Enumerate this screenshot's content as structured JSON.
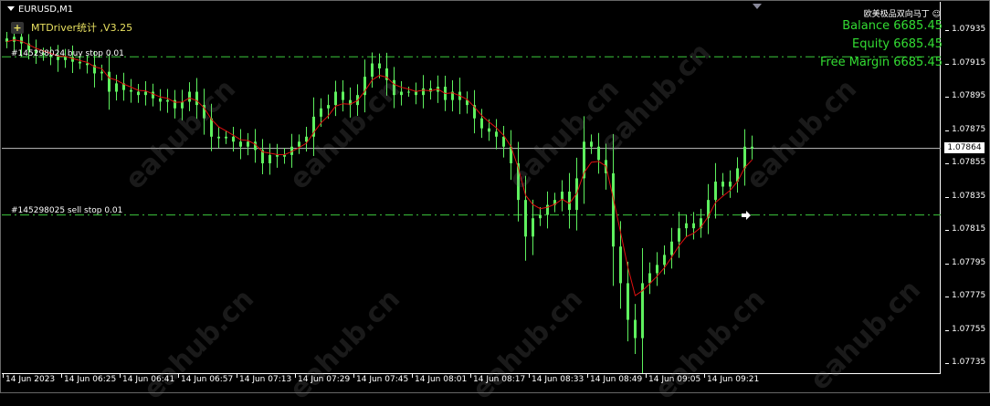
{
  "window": {
    "symbol": "EURUSD,M1"
  },
  "ea": {
    "plus_label": "+",
    "name": "MTDriver统计 ,V3.25"
  },
  "account": {
    "mode": "欧美极品双向马丁",
    "mode_icon": "smiley-icon",
    "balance": "Balance 6685.45",
    "equity": "Equity 6685.45",
    "free_margin": "Free Margin 6685.45"
  },
  "orders": [
    {
      "label": "#145298024 buy stop 0.01",
      "price": 1.07919
    },
    {
      "label": "#145298025 sell stop 0.01",
      "price": 1.07824
    }
  ],
  "watermark": "eahub.cn",
  "colors": {
    "candle": "#5ef05e",
    "ma": "#e01010",
    "order_line": "#3cc83c",
    "background": "#000000",
    "price_line": "#c0c0c0"
  },
  "chart_data": {
    "type": "candlestick",
    "timeframe": "M1",
    "current_price": "1.07864",
    "y_ticks": [
      "1.07935",
      "1.07915",
      "1.07895",
      "1.07875",
      "1.07855",
      "1.07835",
      "1.07815",
      "1.07795",
      "1.07775",
      "1.07755",
      "1.07735"
    ],
    "x_ticks": [
      "14 Jun 2023",
      "14 Jun 06:25",
      "14 Jun 06:41",
      "14 Jun 06:57",
      "14 Jun 07:13",
      "14 Jun 07:29",
      "14 Jun 07:45",
      "14 Jun 08:01",
      "14 Jun 08:17",
      "14 Jun 08:33",
      "14 Jun 08:49",
      "14 Jun 09:05",
      "14 Jun 09:21"
    ],
    "ylim": [
      1.07727,
      1.07945
    ],
    "closes": [
      1.07928,
      1.07931,
      1.07927,
      1.07923,
      1.07921,
      1.0792,
      1.07919,
      1.07917,
      1.07919,
      1.07916,
      1.07915,
      1.07914,
      1.07909,
      1.0791,
      1.07898,
      1.07903,
      1.07899,
      1.07898,
      1.07896,
      1.07898,
      1.07894,
      1.07892,
      1.07893,
      1.07888,
      1.07892,
      1.07898,
      1.0789,
      1.07882,
      1.07871,
      1.0787,
      1.07871,
      1.07868,
      1.07865,
      1.07868,
      1.07863,
      1.07855,
      1.0786,
      1.07859,
      1.0786,
      1.07865,
      1.07868,
      1.07871,
      1.07883,
      1.07888,
      1.0789,
      1.07898,
      1.07893,
      1.0789,
      1.07896,
      1.07907,
      1.07915,
      1.07912,
      1.07905,
      1.07896,
      1.07898,
      1.07898,
      1.07896,
      1.079,
      1.07898,
      1.07901,
      1.07893,
      1.07898,
      1.07893,
      1.0789,
      1.07882,
      1.07876,
      1.07874,
      1.07871,
      1.07865,
      1.07855,
      1.07833,
      1.07811,
      1.07822,
      1.07824,
      1.0783,
      1.07833,
      1.07838,
      1.07827,
      1.07846,
      1.07868,
      1.07865,
      1.07857,
      1.07849,
      1.07805,
      1.07783,
      1.07761,
      1.0775,
      1.07783,
      1.07789,
      1.07794,
      1.078,
      1.07808,
      1.07816,
      1.07819,
      1.07816,
      1.07822,
      1.07833,
      1.07844,
      1.07841,
      1.07844,
      1.07852,
      1.07865,
      1.07864
    ]
  }
}
